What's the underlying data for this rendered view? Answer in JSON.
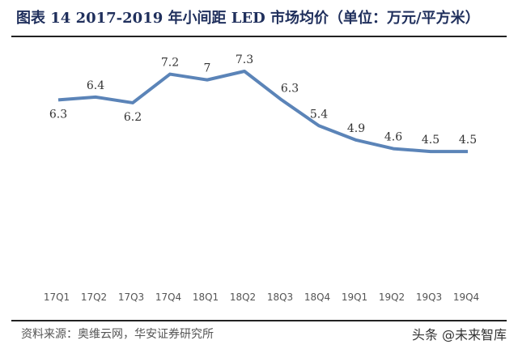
{
  "title": "图表 14 2017-2019 年小间距 LED 市场均价（单位：万元/平方米）",
  "source": "资料来源：奥维云网，华安证券研究所",
  "watermark": "头条 @未来智库",
  "chart_data": {
    "type": "line",
    "categories": [
      "17Q1",
      "17Q2",
      "17Q3",
      "17Q4",
      "18Q1",
      "18Q2",
      "18Q3",
      "18Q4",
      "19Q1",
      "19Q2",
      "19Q3",
      "19Q4"
    ],
    "values": [
      6.3,
      6.4,
      6.2,
      7.2,
      7,
      7.3,
      6.3,
      5.4,
      4.9,
      4.6,
      4.5,
      4.5
    ],
    "labels": [
      "6.3",
      "6.4",
      "6.2",
      "7.2",
      "7",
      "7.3",
      "6.3",
      "5.4",
      "4.9",
      "4.6",
      "4.5",
      "4.5"
    ],
    "line_color": "#5b84b8",
    "grid": false,
    "legend": "none"
  }
}
